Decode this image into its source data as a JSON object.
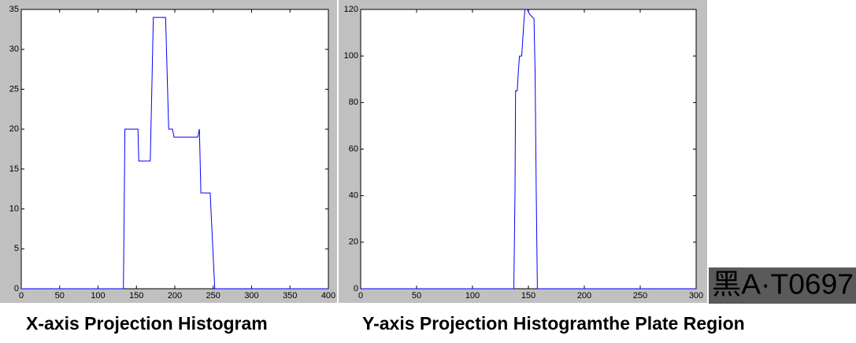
{
  "chart_data": [
    {
      "type": "line",
      "title": "X-axis Projection Histogram",
      "color": "#0000ff",
      "x": [
        0,
        133,
        134,
        135,
        152,
        153,
        168,
        170,
        172,
        188,
        192,
        197,
        199,
        230,
        232,
        234,
        246,
        249,
        252,
        400
      ],
      "values": [
        0,
        0,
        10,
        20,
        20,
        16,
        16,
        25,
        34,
        34,
        20,
        20,
        19,
        19,
        20,
        12,
        12,
        6,
        0,
        0
      ],
      "xlim": [
        0,
        400
      ],
      "ylim": [
        0,
        35
      ],
      "xticks": [
        0,
        50,
        100,
        150,
        200,
        250,
        300,
        350,
        400
      ],
      "yticks": [
        0,
        5,
        10,
        15,
        20,
        25,
        30,
        35
      ]
    },
    {
      "type": "line",
      "title": "Y-axis Projection Histogram",
      "color": "#0000ff",
      "x": [
        0,
        137,
        138,
        138.5,
        140,
        141,
        142,
        144,
        146,
        147,
        149,
        151,
        153,
        155,
        156,
        157,
        158,
        300
      ],
      "values": [
        0,
        0,
        42,
        85,
        85,
        93,
        100,
        100,
        115,
        120,
        120,
        118,
        117,
        116,
        93,
        43,
        0,
        0
      ],
      "xlim": [
        0,
        300
      ],
      "ylim": [
        0,
        120
      ],
      "xticks": [
        0,
        50,
        100,
        150,
        200,
        250,
        300
      ],
      "yticks": [
        0,
        20,
        40,
        60,
        80,
        100,
        120
      ]
    }
  ],
  "plate": {
    "text": "黑A·T0697",
    "caption": "the Plate Region"
  }
}
